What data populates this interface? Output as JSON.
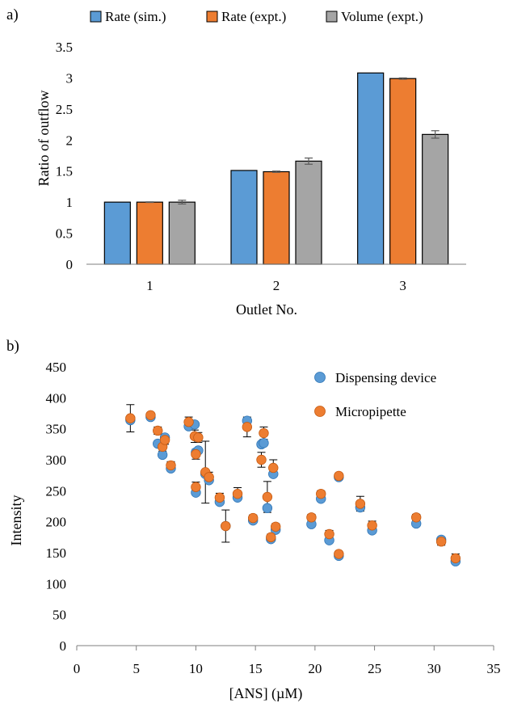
{
  "chart_data": [
    {
      "panel_label": "a)",
      "type": "bar",
      "title": "",
      "xlabel": "Outlet No.",
      "ylabel": "Ratio of outflow",
      "ylim": [
        0,
        3.5
      ],
      "yticks": [
        "0",
        "0.5",
        "1",
        "1.5",
        "2",
        "2.5",
        "3",
        "3.5"
      ],
      "categories": [
        "1",
        "2",
        "3"
      ],
      "grid": false,
      "legend": "top",
      "series": [
        {
          "name": "Rate (sim.)",
          "color": "#5B9BD5",
          "values": [
            1.0,
            1.51,
            3.08
          ],
          "errors": [
            0,
            0,
            0
          ]
        },
        {
          "name": "Rate (expt.)",
          "color": "#ED7D31",
          "values": [
            1.0,
            1.49,
            2.99
          ],
          "errors": [
            0.005,
            0.01,
            0.01
          ]
        },
        {
          "name": "Volume (expt.)",
          "color": "#A5A5A5",
          "values": [
            1.0,
            1.66,
            2.09
          ],
          "errors": [
            0.03,
            0.05,
            0.06
          ]
        }
      ]
    },
    {
      "panel_label": "b)",
      "type": "scatter",
      "title": "",
      "xlabel": "[ANS] (µM)",
      "ylabel": "Intensity",
      "xlim": [
        0,
        35
      ],
      "ylim": [
        0,
        450
      ],
      "xticks": [
        "0",
        "5",
        "10",
        "15",
        "20",
        "25",
        "30",
        "35"
      ],
      "yticks": [
        "0",
        "50",
        "100",
        "150",
        "200",
        "250",
        "300",
        "350",
        "400",
        "450"
      ],
      "grid": false,
      "legend": "top-right",
      "series": [
        {
          "name": "Dispensing device",
          "color": "#5B9BD5",
          "x": [
            4.5,
            6.2,
            6.8,
            7.2,
            7.4,
            7.9,
            9.4,
            9.9,
            10.0,
            10.0,
            10.2,
            10.8,
            11.1,
            12.0,
            12.5,
            13.5,
            14.3,
            14.8,
            15.5,
            15.7,
            16.0,
            16.3,
            16.5,
            16.7,
            19.7,
            20.5,
            21.2,
            22.0,
            22.0,
            23.8,
            24.8,
            28.5,
            30.6,
            31.8
          ],
          "y": [
            364,
            369,
            326,
            308,
            336,
            286,
            354,
            357,
            247,
            312,
            315,
            277,
            267,
            232,
            193,
            239,
            363,
            202,
            325,
            327,
            222,
            172,
            277,
            187,
            196,
            237,
            170,
            145,
            272,
            223,
            186,
            197,
            171,
            136
          ]
        },
        {
          "name": "Micropipette",
          "color": "#ED7D31",
          "x": [
            4.5,
            6.2,
            6.8,
            7.2,
            7.4,
            7.9,
            9.4,
            9.9,
            10.0,
            10.0,
            10.2,
            10.8,
            11.1,
            12.0,
            12.5,
            13.5,
            14.3,
            14.8,
            15.5,
            15.7,
            16.0,
            16.3,
            16.5,
            16.7,
            19.7,
            20.5,
            21.2,
            22.0,
            22.0,
            23.8,
            24.8,
            28.5,
            30.6,
            31.8
          ],
          "y": [
            367,
            372,
            347,
            321,
            332,
            291,
            361,
            338,
            256,
            309,
            336,
            280,
            272,
            239,
            193,
            245,
            353,
            206,
            300,
            343,
            240,
            175,
            287,
            192,
            207,
            245,
            180,
            148,
            274,
            229,
            194,
            207,
            168,
            141
          ],
          "errors": [
            22,
            4,
            6,
            7,
            7,
            6,
            8,
            10,
            8,
            8,
            8,
            50,
            8,
            7,
            26,
            10,
            16,
            5,
            12,
            10,
            25,
            5,
            13,
            5,
            5,
            5,
            6,
            4,
            4,
            12,
            7,
            5,
            6,
            7
          ]
        }
      ]
    }
  ]
}
